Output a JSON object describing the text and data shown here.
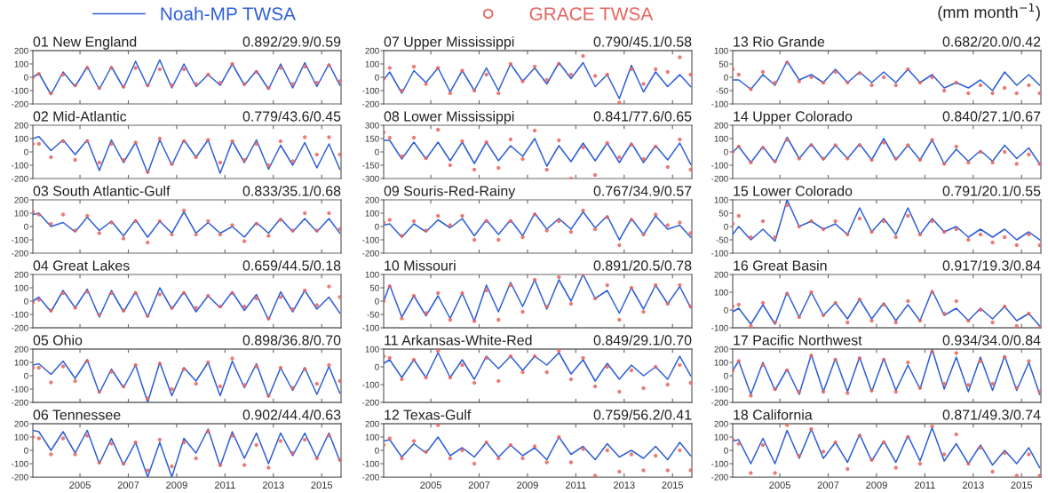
{
  "chart_data": [
    {
      "type": "line",
      "title": "01 New England",
      "subtitle": "0.892/29.9/0.59",
      "legend": "top",
      "xlim": [
        2003.05,
        2015.8
      ],
      "xticks": [
        2005,
        2007,
        2009,
        2011,
        2013,
        2015
      ],
      "ylim": [
        -200,
        200
      ],
      "yticks": [
        200,
        100,
        0,
        -100,
        -200
      ],
      "tick_labels": "y",
      "x": [
        2003.05,
        2003.3,
        2003.8,
        2004.3,
        2004.8,
        2005.3,
        2005.8,
        2006.3,
        2006.8,
        2007.3,
        2007.8,
        2008.3,
        2008.8,
        2009.3,
        2009.8,
        2010.3,
        2010.8,
        2011.3,
        2011.8,
        2012.3,
        2012.8,
        2013.3,
        2013.8,
        2014.3,
        2014.8,
        2015.3,
        2015.75
      ],
      "series": [
        {
          "name": "Noah-MP TWSA",
          "color": "#2f5fd6",
          "values": [
            0,
            30,
            -130,
            40,
            -70,
            80,
            -90,
            80,
            -80,
            120,
            -70,
            130,
            -80,
            100,
            -70,
            20,
            -60,
            100,
            -60,
            50,
            -90,
            100,
            -80,
            110,
            -70,
            100,
            -60
          ]
        },
        {
          "name": "GRACE TWSA",
          "type": "scatter",
          "marker": "circle",
          "color": "#e8645f",
          "values": [
            0,
            25,
            -120,
            20,
            -60,
            70,
            -80,
            70,
            -70,
            70,
            -60,
            60,
            -60,
            60,
            -50,
            20,
            -40,
            100,
            -50,
            40,
            -80,
            70,
            -50,
            80,
            -40,
            90,
            -30
          ]
        }
      ]
    },
    {
      "type": "line",
      "title": "02 Mid-Atlantic",
      "subtitle": "0.779/43.6/0.45",
      "xlim": [
        2003.05,
        2015.8
      ],
      "xticks": [
        2005,
        2007,
        2009,
        2011,
        2013,
        2015
      ],
      "ylim": [
        -200,
        200
      ],
      "yticks": [
        200,
        100,
        0,
        -100,
        -200
      ],
      "tick_labels": "y",
      "x": [
        2003.05,
        2003.3,
        2003.8,
        2004.3,
        2004.8,
        2005.3,
        2005.8,
        2006.3,
        2006.8,
        2007.3,
        2007.8,
        2008.3,
        2008.8,
        2009.3,
        2009.8,
        2010.3,
        2010.8,
        2011.3,
        2011.8,
        2012.3,
        2012.8,
        2013.3,
        2013.8,
        2014.3,
        2014.8,
        2015.3,
        2015.75
      ],
      "series": [
        {
          "color": "#2f5fd6",
          "values": [
            100,
            115,
            10,
            90,
            -20,
            90,
            -140,
            90,
            -80,
            70,
            -160,
            90,
            -100,
            90,
            -40,
            90,
            -160,
            80,
            -80,
            90,
            -130,
            50,
            -100,
            70,
            -120,
            60,
            -130
          ]
        },
        {
          "type": "scatter",
          "marker": "circle",
          "color": "#e8645f",
          "values": [
            60,
            60,
            -40,
            80,
            -60,
            80,
            -80,
            60,
            -60,
            70,
            -150,
            100,
            -90,
            80,
            -40,
            90,
            -80,
            80,
            -60,
            60,
            -100,
            80,
            -70,
            110,
            -20,
            110,
            -20
          ]
        }
      ]
    },
    {
      "type": "line",
      "title": "03 South Atlantic-Gulf",
      "subtitle": "0.833/35.1/0.68",
      "xlim": [
        2003.05,
        2015.8
      ],
      "xticks": [
        2005,
        2007,
        2009,
        2011,
        2013,
        2015
      ],
      "ylim": [
        -200,
        200
      ],
      "yticks": [
        200,
        100,
        0,
        -100,
        -200
      ],
      "tick_labels": "y",
      "x": [
        2003.05,
        2003.3,
        2003.8,
        2004.3,
        2004.8,
        2005.3,
        2005.8,
        2006.3,
        2006.8,
        2007.3,
        2007.8,
        2008.3,
        2008.8,
        2009.3,
        2009.8,
        2010.3,
        2010.8,
        2011.3,
        2011.8,
        2012.3,
        2012.8,
        2013.3,
        2013.8,
        2014.3,
        2014.8,
        2015.3,
        2015.75
      ],
      "series": [
        {
          "color": "#2f5fd6",
          "values": [
            90,
            100,
            0,
            30,
            -40,
            70,
            -30,
            40,
            -70,
            50,
            -80,
            40,
            -50,
            110,
            -50,
            30,
            -50,
            0,
            -80,
            30,
            -50,
            60,
            -40,
            60,
            -40,
            60,
            -50
          ]
        },
        {
          "type": "scatter",
          "marker": "circle",
          "color": "#e8645f",
          "values": [
            110,
            90,
            20,
            90,
            -30,
            80,
            -50,
            30,
            -90,
            40,
            -120,
            40,
            -60,
            120,
            -60,
            40,
            -60,
            10,
            -110,
            20,
            -70,
            50,
            -30,
            100,
            -30,
            100,
            -20
          ]
        }
      ]
    },
    {
      "type": "line",
      "title": "04 Great Lakes",
      "subtitle": "0.659/44.5/0.18",
      "xlim": [
        2003.05,
        2015.8
      ],
      "xticks": [
        2005,
        2007,
        2009,
        2011,
        2013,
        2015
      ],
      "ylim": [
        -200,
        200
      ],
      "yticks": [
        200,
        100,
        0,
        -100,
        -200
      ],
      "tick_labels": "y",
      "x": [
        2003.05,
        2003.3,
        2003.8,
        2004.3,
        2004.8,
        2005.3,
        2005.8,
        2006.3,
        2006.8,
        2007.3,
        2007.8,
        2008.3,
        2008.8,
        2009.3,
        2009.8,
        2010.3,
        2010.8,
        2011.3,
        2011.8,
        2012.3,
        2012.8,
        2013.3,
        2013.8,
        2014.3,
        2014.8,
        2015.3,
        2015.75
      ],
      "series": [
        {
          "color": "#2f5fd6",
          "values": [
            0,
            30,
            -80,
            80,
            -50,
            90,
            -120,
            80,
            -80,
            70,
            -120,
            100,
            -60,
            70,
            -80,
            40,
            -50,
            70,
            -70,
            50,
            -140,
            70,
            -80,
            80,
            -60,
            30,
            -90
          ]
        },
        {
          "type": "scatter",
          "marker": "circle",
          "color": "#e8645f",
          "values": [
            -10,
            10,
            -70,
            60,
            -50,
            70,
            -100,
            60,
            -70,
            60,
            -110,
            50,
            -50,
            60,
            -50,
            40,
            -40,
            60,
            -40,
            20,
            -130,
            30,
            -60,
            80,
            -30,
            110,
            30
          ]
        }
      ]
    },
    {
      "type": "line",
      "title": "05 Ohio",
      "subtitle": "0.898/36.8/0.70",
      "xlim": [
        2003.05,
        2015.8
      ],
      "xticks": [
        2005,
        2007,
        2009,
        2011,
        2013,
        2015
      ],
      "ylim": [
        -200,
        200
      ],
      "yticks": [
        200,
        100,
        0,
        -100,
        -200
      ],
      "tick_labels": "y",
      "x": [
        2003.05,
        2003.3,
        2003.8,
        2004.3,
        2004.8,
        2005.3,
        2005.8,
        2006.3,
        2006.8,
        2007.3,
        2007.8,
        2008.3,
        2008.8,
        2009.3,
        2009.8,
        2010.3,
        2010.8,
        2011.3,
        2011.8,
        2012.3,
        2012.8,
        2013.3,
        2013.8,
        2014.3,
        2014.8,
        2015.3,
        2015.75
      ],
      "series": [
        {
          "color": "#2f5fd6",
          "values": [
            80,
            90,
            10,
            110,
            -20,
            120,
            -130,
            50,
            -90,
            80,
            -200,
            100,
            -150,
            60,
            -40,
            100,
            -150,
            110,
            -90,
            90,
            -160,
            60,
            -110,
            60,
            -140,
            70,
            -130
          ]
        },
        {
          "type": "scatter",
          "marker": "circle",
          "color": "#e8645f",
          "values": [
            60,
            60,
            -50,
            70,
            -40,
            110,
            -120,
            30,
            -80,
            80,
            -170,
            90,
            -100,
            50,
            -60,
            100,
            -80,
            130,
            -70,
            70,
            -150,
            60,
            -90,
            50,
            -60,
            80,
            -40
          ]
        }
      ]
    },
    {
      "type": "line",
      "title": "06 Tennessee",
      "subtitle": "0.902/44.4/0.63",
      "xlim": [
        2003.05,
        2015.8
      ],
      "xticks": [
        2005,
        2007,
        2009,
        2011,
        2013,
        2015
      ],
      "ylim": [
        -200,
        200
      ],
      "yticks": [
        200,
        100,
        0,
        -100,
        -200
      ],
      "x": [
        2003.05,
        2003.3,
        2003.8,
        2004.3,
        2004.8,
        2005.3,
        2005.8,
        2006.3,
        2006.8,
        2007.3,
        2007.8,
        2008.3,
        2008.8,
        2009.3,
        2009.8,
        2010.3,
        2010.8,
        2011.3,
        2011.8,
        2012.3,
        2012.8,
        2013.3,
        2013.8,
        2014.3,
        2014.8,
        2015.3,
        2015.75
      ],
      "series": [
        {
          "color": "#2f5fd6",
          "values": [
            150,
            140,
            0,
            140,
            -20,
            150,
            -100,
            90,
            -110,
            60,
            -200,
            60,
            -200,
            90,
            -20,
            160,
            -120,
            140,
            -60,
            130,
            -100,
            130,
            -40,
            130,
            -60,
            130,
            -80
          ]
        },
        {
          "type": "scatter",
          "marker": "circle",
          "color": "#e8645f",
          "values": [
            100,
            90,
            -30,
            90,
            -30,
            110,
            -90,
            50,
            -100,
            60,
            -150,
            80,
            -120,
            60,
            -60,
            140,
            -110,
            110,
            -110,
            40,
            -130,
            70,
            -20,
            80,
            -60,
            110,
            -70
          ]
        }
      ]
    },
    {
      "type": "line",
      "title": "07 Upper Mississippi",
      "subtitle": "0.790/45.1/0.58",
      "xlim": [
        2003.05,
        2015.8
      ],
      "xticks": [
        2005,
        2007,
        2009,
        2011,
        2013,
        2015
      ],
      "ylim": [
        -200,
        200
      ],
      "yticks": [
        200,
        100,
        0,
        -100,
        -200
      ],
      "tick_labels": "y",
      "x": [
        2003.05,
        2003.3,
        2003.8,
        2004.3,
        2004.8,
        2005.3,
        2005.8,
        2006.3,
        2006.8,
        2007.3,
        2007.8,
        2008.3,
        2008.8,
        2009.3,
        2009.8,
        2010.3,
        2010.8,
        2011.3,
        2011.8,
        2012.3,
        2012.8,
        2013.3,
        2013.8,
        2014.3,
        2014.8,
        2015.3,
        2015.75
      ],
      "series": [
        {
          "color": "#2f5fd6",
          "values": [
            -20,
            40,
            -120,
            50,
            -40,
            70,
            -110,
            50,
            -100,
            70,
            -100,
            100,
            -30,
            70,
            -50,
            110,
            -10,
            110,
            -70,
            20,
            -160,
            90,
            -110,
            40,
            -70,
            20,
            -70
          ]
        },
        {
          "type": "scatter",
          "marker": "circle",
          "color": "#e8645f",
          "values": [
            -10,
            70,
            -100,
            80,
            -50,
            70,
            -120,
            50,
            -100,
            20,
            -120,
            100,
            -30,
            80,
            -20,
            100,
            20,
            160,
            10,
            20,
            -190,
            60,
            -50,
            60,
            40,
            150,
            20
          ]
        }
      ]
    },
    {
      "type": "line",
      "title": "08 Lower Mississippi",
      "subtitle": "0.841/77.6/0.65",
      "xlim": [
        2003.05,
        2015.8
      ],
      "xticks": [
        2005,
        2007,
        2009,
        2011,
        2013,
        2015
      ],
      "ylim": [
        -300,
        300
      ],
      "yticks": [
        300,
        150,
        0,
        -150,
        -300
      ],
      "tick_labels": "y",
      "x": [
        2003.05,
        2003.3,
        2003.8,
        2004.3,
        2004.8,
        2005.3,
        2005.8,
        2006.3,
        2006.8,
        2007.3,
        2007.8,
        2008.3,
        2008.8,
        2009.3,
        2009.8,
        2010.3,
        2010.8,
        2011.3,
        2011.8,
        2012.3,
        2012.8,
        2013.3,
        2013.8,
        2014.3,
        2014.8,
        2015.3,
        2015.75
      ],
      "series": [
        {
          "color": "#2f5fd6",
          "values": [
            130,
            130,
            -80,
            110,
            -80,
            110,
            -100,
            110,
            -130,
            110,
            -100,
            70,
            -50,
            150,
            -160,
            70,
            -110,
            100,
            -100,
            100,
            -120,
            100,
            -120,
            70,
            -90,
            100,
            -140
          ]
        },
        {
          "type": "scatter",
          "marker": "circle",
          "color": "#e8645f",
          "values": [
            220,
            160,
            -50,
            160,
            -70,
            250,
            -150,
            120,
            -200,
            110,
            -180,
            140,
            -80,
            240,
            -200,
            130,
            -300,
            50,
            -260,
            100,
            -60,
            80,
            -80,
            60,
            -170,
            140,
            -200
          ]
        }
      ]
    },
    {
      "type": "line",
      "title": "09 Souris-Red-Rainy",
      "subtitle": "0.767/34.9/0.57",
      "xlim": [
        2003.05,
        2015.8
      ],
      "xticks": [
        2005,
        2007,
        2009,
        2011,
        2013,
        2015
      ],
      "ylim": [
        -200,
        200
      ],
      "yticks": [
        200,
        100,
        0,
        -100,
        -200
      ],
      "tick_labels": "y",
      "x": [
        2003.05,
        2003.3,
        2003.8,
        2004.3,
        2004.8,
        2005.3,
        2005.8,
        2006.3,
        2006.8,
        2007.3,
        2007.8,
        2008.3,
        2008.8,
        2009.3,
        2009.8,
        2010.3,
        2010.8,
        2011.3,
        2011.8,
        2012.3,
        2012.8,
        2013.3,
        2013.8,
        2014.3,
        2014.8,
        2015.3,
        2015.75
      ],
      "series": [
        {
          "color": "#2f5fd6",
          "values": [
            10,
            20,
            -80,
            20,
            -40,
            50,
            -10,
            60,
            -70,
            50,
            -60,
            50,
            -70,
            100,
            -20,
            60,
            -20,
            110,
            -10,
            80,
            -100,
            60,
            -60,
            80,
            -20,
            10,
            -80
          ]
        },
        {
          "type": "scatter",
          "marker": "circle",
          "color": "#e8645f",
          "values": [
            30,
            50,
            -70,
            40,
            -30,
            80,
            10,
            80,
            -100,
            40,
            -100,
            40,
            -80,
            90,
            -30,
            40,
            -40,
            120,
            -20,
            70,
            -140,
            50,
            -60,
            90,
            10,
            30,
            -50
          ]
        }
      ]
    },
    {
      "type": "line",
      "title": "10 Missouri",
      "subtitle": "0.891/20.5/0.78",
      "xlim": [
        2003.05,
        2015.8
      ],
      "xticks": [
        2005,
        2007,
        2009,
        2011,
        2013,
        2015
      ],
      "ylim": [
        -100,
        100
      ],
      "yticks": [
        100,
        50,
        0,
        -50,
        -100
      ],
      "tick_labels": "y",
      "x": [
        2003.05,
        2003.3,
        2003.8,
        2004.3,
        2004.8,
        2005.3,
        2005.8,
        2006.3,
        2006.8,
        2007.3,
        2007.8,
        2008.3,
        2008.8,
        2009.3,
        2009.8,
        2010.3,
        2010.8,
        2011.3,
        2011.8,
        2012.3,
        2012.8,
        2013.3,
        2013.8,
        2014.3,
        2014.8,
        2015.3,
        2015.75
      ],
      "series": [
        {
          "color": "#2f5fd6",
          "values": [
            0,
            60,
            -60,
            20,
            -55,
            20,
            -65,
            30,
            -75,
            60,
            -40,
            70,
            -20,
            80,
            -30,
            80,
            0,
            100,
            10,
            40,
            -45,
            50,
            -30,
            60,
            -10,
            55,
            -25
          ]
        },
        {
          "type": "scatter",
          "marker": "circle",
          "color": "#e8645f",
          "values": [
            0,
            55,
            -65,
            20,
            -45,
            30,
            -70,
            30,
            -75,
            40,
            -70,
            60,
            -40,
            80,
            -20,
            90,
            -10,
            100,
            10,
            60,
            -70,
            50,
            -40,
            60,
            -10,
            60,
            -20
          ]
        }
      ]
    },
    {
      "type": "line",
      "title": "11 Arkansas-White-Red",
      "subtitle": "0.849/29.1/0.70",
      "xlim": [
        2003.05,
        2015.8
      ],
      "xticks": [
        2005,
        2007,
        2009,
        2011,
        2013,
        2015
      ],
      "ylim": [
        -200,
        100
      ],
      "yticks": [
        100,
        0,
        -100,
        -200
      ],
      "tick_labels": "y",
      "x": [
        2003.05,
        2003.3,
        2003.8,
        2004.3,
        2004.8,
        2005.3,
        2005.8,
        2006.3,
        2006.8,
        2007.3,
        2007.8,
        2008.3,
        2008.8,
        2009.3,
        2009.8,
        2010.3,
        2010.8,
        2011.3,
        2011.8,
        2012.3,
        2012.8,
        2013.3,
        2013.8,
        2014.3,
        2014.8,
        2015.3,
        2015.75
      ],
      "series": [
        {
          "color": "#2f5fd6",
          "values": [
            20,
            40,
            -60,
            40,
            -60,
            80,
            -60,
            40,
            -70,
            60,
            -10,
            60,
            -20,
            60,
            10,
            80,
            -40,
            40,
            -80,
            20,
            -70,
            10,
            -50,
            0,
            -70,
            60,
            -50
          ]
        },
        {
          "type": "scatter",
          "marker": "circle",
          "color": "#e8645f",
          "values": [
            60,
            50,
            -70,
            40,
            -60,
            90,
            -60,
            10,
            -90,
            50,
            -80,
            60,
            -30,
            60,
            -30,
            90,
            -70,
            50,
            -110,
            0,
            -140,
            -20,
            -120,
            0,
            -100,
            10,
            -90
          ]
        }
      ]
    },
    {
      "type": "line",
      "title": "12 Texas-Gulf",
      "subtitle": "0.759/56.2/0.41",
      "xlim": [
        2003.05,
        2015.8
      ],
      "xticks": [
        2005,
        2007,
        2009,
        2011,
        2013,
        2015
      ],
      "ylim": [
        -200,
        200
      ],
      "yticks": [
        200,
        100,
        0,
        -100,
        -200
      ],
      "x": [
        2003.05,
        2003.3,
        2003.8,
        2004.3,
        2004.8,
        2005.3,
        2005.8,
        2006.3,
        2006.8,
        2007.3,
        2007.8,
        2008.3,
        2008.8,
        2009.3,
        2009.8,
        2010.3,
        2010.8,
        2011.3,
        2011.8,
        2012.3,
        2012.8,
        2013.3,
        2013.8,
        2014.3,
        2014.8,
        2015.3,
        2015.75
      ],
      "series": [
        {
          "color": "#2f5fd6",
          "values": [
            70,
            80,
            -50,
            50,
            -20,
            100,
            -40,
            20,
            -50,
            60,
            -50,
            40,
            -40,
            20,
            -70,
            100,
            -30,
            30,
            -70,
            50,
            -50,
            0,
            -60,
            30,
            -70,
            60,
            -40
          ]
        },
        {
          "type": "scatter",
          "marker": "circle",
          "color": "#e8645f",
          "values": [
            40,
            90,
            -60,
            70,
            -10,
            190,
            -60,
            0,
            -100,
            60,
            -60,
            40,
            -60,
            30,
            -90,
            100,
            -90,
            10,
            -190,
            0,
            -160,
            -30,
            -150,
            -40,
            -150,
            0,
            -150
          ]
        }
      ]
    },
    {
      "type": "line",
      "title": "13 Rio Grande",
      "subtitle": "0.682/20.0/0.42",
      "annotations": [
        "(mm month$^{−1}$)"
      ],
      "xlim": [
        2003.05,
        2015.8
      ],
      "xticks": [
        2005,
        2007,
        2009,
        2011,
        2013,
        2015
      ],
      "ylim": [
        -100,
        100
      ],
      "yticks": [
        100,
        50,
        0,
        -50,
        -100
      ],
      "tick_labels": "y",
      "x": [
        2003.05,
        2003.3,
        2003.8,
        2004.3,
        2004.8,
        2005.3,
        2005.8,
        2006.3,
        2006.8,
        2007.3,
        2007.8,
        2008.3,
        2008.8,
        2009.3,
        2009.8,
        2010.3,
        2010.8,
        2011.3,
        2011.8,
        2012.3,
        2012.8,
        2013.3,
        2013.8,
        2014.3,
        2014.8,
        2015.3,
        2015.75
      ],
      "series": [
        {
          "color": "#2f5fd6",
          "values": [
            -10,
            -10,
            -45,
            10,
            -30,
            60,
            -10,
            10,
            -20,
            30,
            -20,
            20,
            -20,
            20,
            -20,
            30,
            -20,
            10,
            -40,
            -20,
            -40,
            -10,
            -50,
            20,
            -30,
            10,
            -30
          ]
        },
        {
          "type": "scatter",
          "marker": "circle",
          "color": "#e8645f",
          "values": [
            30,
            10,
            -45,
            20,
            -20,
            55,
            -15,
            0,
            -20,
            20,
            -20,
            15,
            -30,
            0,
            -30,
            30,
            -20,
            0,
            -50,
            -20,
            -60,
            -30,
            -60,
            -40,
            -60,
            -30,
            -60
          ]
        }
      ]
    },
    {
      "type": "line",
      "title": "14 Upper Colorado",
      "subtitle": "0.840/27.1/0.67",
      "xlim": [
        2003.05,
        2015.8
      ],
      "xticks": [
        2005,
        2007,
        2009,
        2011,
        2013,
        2015
      ],
      "ylim": [
        -200,
        200
      ],
      "yticks": [
        200,
        100,
        0,
        -100,
        -200
      ],
      "tick_labels": "y",
      "x": [
        2003.05,
        2003.3,
        2003.8,
        2004.3,
        2004.8,
        2005.3,
        2005.8,
        2006.3,
        2006.8,
        2007.3,
        2007.8,
        2008.3,
        2008.8,
        2009.3,
        2009.8,
        2010.3,
        2010.8,
        2011.3,
        2011.8,
        2012.3,
        2012.8,
        2013.3,
        2013.8,
        2014.3,
        2014.8,
        2015.3,
        2015.75
      ],
      "series": [
        {
          "color": "#2f5fd6",
          "values": [
            0,
            40,
            -80,
            40,
            -80,
            110,
            -50,
            60,
            -60,
            50,
            -50,
            60,
            -60,
            100,
            -60,
            50,
            -60,
            90,
            -90,
            20,
            -70,
            10,
            -70,
            50,
            -50,
            30,
            -90
          ]
        },
        {
          "type": "scatter",
          "marker": "circle",
          "color": "#e8645f",
          "values": [
            0,
            40,
            -80,
            30,
            -70,
            90,
            -50,
            50,
            -50,
            50,
            -50,
            50,
            -60,
            70,
            -50,
            50,
            -60,
            90,
            -90,
            40,
            -80,
            0,
            -80,
            0,
            -90,
            -20,
            -90
          ]
        }
      ]
    },
    {
      "type": "line",
      "title": "15 Lower Colorado",
      "subtitle": "0.791/20.1/0.55",
      "xlim": [
        2003.05,
        2015.8
      ],
      "xticks": [
        2005,
        2007,
        2009,
        2011,
        2013,
        2015
      ],
      "ylim": [
        -100,
        100
      ],
      "yticks": [
        100,
        50,
        0,
        -50,
        -100
      ],
      "tick_labels": "y",
      "x": [
        2003.05,
        2003.3,
        2003.8,
        2004.3,
        2004.8,
        2005.3,
        2005.8,
        2006.3,
        2006.8,
        2007.3,
        2007.8,
        2008.3,
        2008.8,
        2009.3,
        2009.8,
        2010.3,
        2010.8,
        2011.3,
        2011.8,
        2012.3,
        2012.8,
        2013.3,
        2013.8,
        2014.3,
        2014.8,
        2015.3,
        2015.75
      ],
      "series": [
        {
          "color": "#2f5fd6",
          "values": [
            -30,
            0,
            -50,
            -10,
            -55,
            100,
            0,
            20,
            -10,
            10,
            -30,
            70,
            -20,
            30,
            -30,
            70,
            -30,
            30,
            -20,
            0,
            -40,
            -10,
            -40,
            -10,
            -50,
            -20,
            -50
          ]
        },
        {
          "type": "scatter",
          "marker": "circle",
          "color": "#e8645f",
          "values": [
            10,
            40,
            -40,
            20,
            -40,
            80,
            0,
            20,
            -10,
            20,
            -30,
            30,
            -20,
            20,
            -40,
            40,
            -30,
            20,
            -20,
            -10,
            -50,
            -30,
            -60,
            -40,
            -70,
            -30,
            -70
          ]
        }
      ]
    },
    {
      "type": "line",
      "title": "16 Great Basin",
      "subtitle": "0.917/19.3/0.84",
      "xlim": [
        2003.05,
        2015.8
      ],
      "xticks": [
        2005,
        2007,
        2009,
        2011,
        2013,
        2015
      ],
      "ylim": [
        -100,
        200
      ],
      "yticks": [
        200,
        100,
        0,
        -100
      ],
      "tick_labels": "y",
      "x": [
        2003.05,
        2003.3,
        2003.8,
        2004.3,
        2004.8,
        2005.3,
        2005.8,
        2006.3,
        2006.8,
        2007.3,
        2007.8,
        2008.3,
        2008.8,
        2009.3,
        2009.8,
        2010.3,
        2010.8,
        2011.3,
        2011.8,
        2012.3,
        2012.8,
        2013.3,
        2013.8,
        2014.3,
        2014.8,
        2015.3,
        2015.75
      ],
      "series": [
        {
          "color": "#2f5fd6",
          "values": [
            -10,
            10,
            -80,
            30,
            -80,
            100,
            -40,
            100,
            -30,
            40,
            -50,
            60,
            -50,
            40,
            -60,
            30,
            -60,
            110,
            -30,
            10,
            -60,
            10,
            -50,
            20,
            -60,
            -20,
            -90
          ]
        },
        {
          "type": "scatter",
          "marker": "circle",
          "color": "#e8645f",
          "values": [
            20,
            30,
            -90,
            40,
            -70,
            90,
            -40,
            100,
            -30,
            40,
            -70,
            60,
            -60,
            30,
            -70,
            50,
            -60,
            100,
            -20,
            50,
            -60,
            0,
            -70,
            20,
            -90,
            -20,
            -100
          ]
        }
      ]
    },
    {
      "type": "line",
      "title": "17 Pacific Northwest",
      "subtitle": "0.934/34.0/0.84",
      "xlim": [
        2003.05,
        2015.8
      ],
      "xticks": [
        2005,
        2007,
        2009,
        2011,
        2013,
        2015
      ],
      "ylim": [
        -200,
        200
      ],
      "yticks": [
        200,
        100,
        0,
        -100,
        -200
      ],
      "tick_labels": "y",
      "x": [
        2003.05,
        2003.3,
        2003.8,
        2004.3,
        2004.8,
        2005.3,
        2005.8,
        2006.3,
        2006.8,
        2007.3,
        2007.8,
        2008.3,
        2008.8,
        2009.3,
        2009.8,
        2010.3,
        2010.8,
        2011.3,
        2011.8,
        2012.3,
        2012.8,
        2013.3,
        2013.8,
        2014.3,
        2014.8,
        2015.3,
        2015.75
      ],
      "series": [
        {
          "color": "#2f5fd6",
          "values": [
            40,
            110,
            -140,
            100,
            -110,
            50,
            -140,
            160,
            -120,
            130,
            -120,
            140,
            -120,
            130,
            -110,
            80,
            -100,
            200,
            -100,
            140,
            -120,
            140,
            -110,
            150,
            -110,
            100,
            -140
          ]
        },
        {
          "type": "scatter",
          "marker": "circle",
          "color": "#e8645f",
          "values": [
            40,
            110,
            -150,
            80,
            -100,
            40,
            -120,
            150,
            -120,
            120,
            -130,
            130,
            -110,
            120,
            -120,
            100,
            -90,
            180,
            -60,
            170,
            -70,
            110,
            -60,
            140,
            -90,
            110,
            -120
          ]
        }
      ]
    },
    {
      "type": "line",
      "title": "18 California",
      "subtitle": "0.871/49.3/0.74",
      "xlim": [
        2003.05,
        2015.8
      ],
      "xticks": [
        2005,
        2007,
        2009,
        2011,
        2013,
        2015
      ],
      "ylim": [
        -200,
        200
      ],
      "yticks": [
        200,
        100,
        0,
        -100,
        -200
      ],
      "x": [
        2003.05,
        2003.3,
        2003.8,
        2004.3,
        2004.8,
        2005.3,
        2005.8,
        2006.3,
        2006.8,
        2007.3,
        2007.8,
        2008.3,
        2008.8,
        2009.3,
        2009.8,
        2010.3,
        2010.8,
        2011.3,
        2011.8,
        2012.3,
        2012.8,
        2013.3,
        2013.8,
        2014.3,
        2014.8,
        2015.3,
        2015.75
      ],
      "series": [
        {
          "color": "#2f5fd6",
          "values": [
            70,
            80,
            -100,
            90,
            -100,
            150,
            -60,
            160,
            -60,
            60,
            -90,
            120,
            -80,
            70,
            -90,
            110,
            -80,
            170,
            -80,
            50,
            -100,
            40,
            -110,
            0,
            -100,
            20,
            -130
          ]
        },
        {
          "type": "scatter",
          "marker": "circle",
          "color": "#e8645f",
          "values": [
            80,
            50,
            -170,
            40,
            -170,
            190,
            -40,
            160,
            -10,
            60,
            -140,
            110,
            -70,
            60,
            -130,
            100,
            -100,
            180,
            -30,
            120,
            -100,
            20,
            -160,
            -20,
            -190,
            -30,
            -190
          ]
        }
      ]
    }
  ]
}
